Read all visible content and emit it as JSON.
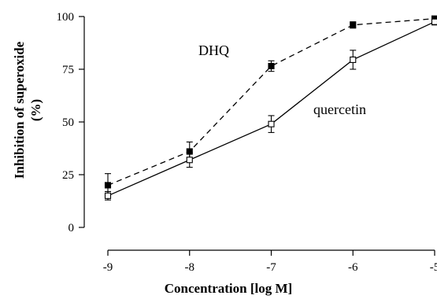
{
  "chart_data": {
    "type": "line",
    "title": "",
    "xlabel": "Concentration [log M]",
    "ylabel_line1": "Inhibition of superoxide",
    "ylabel_line2": "(%)",
    "x": [
      -9,
      -8,
      -7,
      -6,
      -5
    ],
    "x_tick_labels": [
      "-9",
      "-8",
      "-7",
      "-6",
      "-5"
    ],
    "y_ticks": [
      0,
      25,
      50,
      75,
      100
    ],
    "y_tick_labels": [
      "0",
      "25",
      "50",
      "75",
      "100"
    ],
    "xlim": [
      -9,
      -5
    ],
    "ylim": [
      0,
      100
    ],
    "grid": false,
    "series": [
      {
        "name": "DHQ",
        "marker": "filled-square",
        "line_style": "dashed",
        "values": [
          20,
          36,
          76.5,
          96,
          99
        ],
        "errors": [
          5.5,
          4.5,
          2.5,
          1.5,
          1
        ]
      },
      {
        "name": "quercetin",
        "marker": "open-square",
        "line_style": "solid",
        "values": [
          15,
          32,
          49,
          79.5,
          97.5
        ],
        "errors": [
          2,
          3.5,
          4,
          4.5,
          1.5
        ]
      }
    ]
  }
}
